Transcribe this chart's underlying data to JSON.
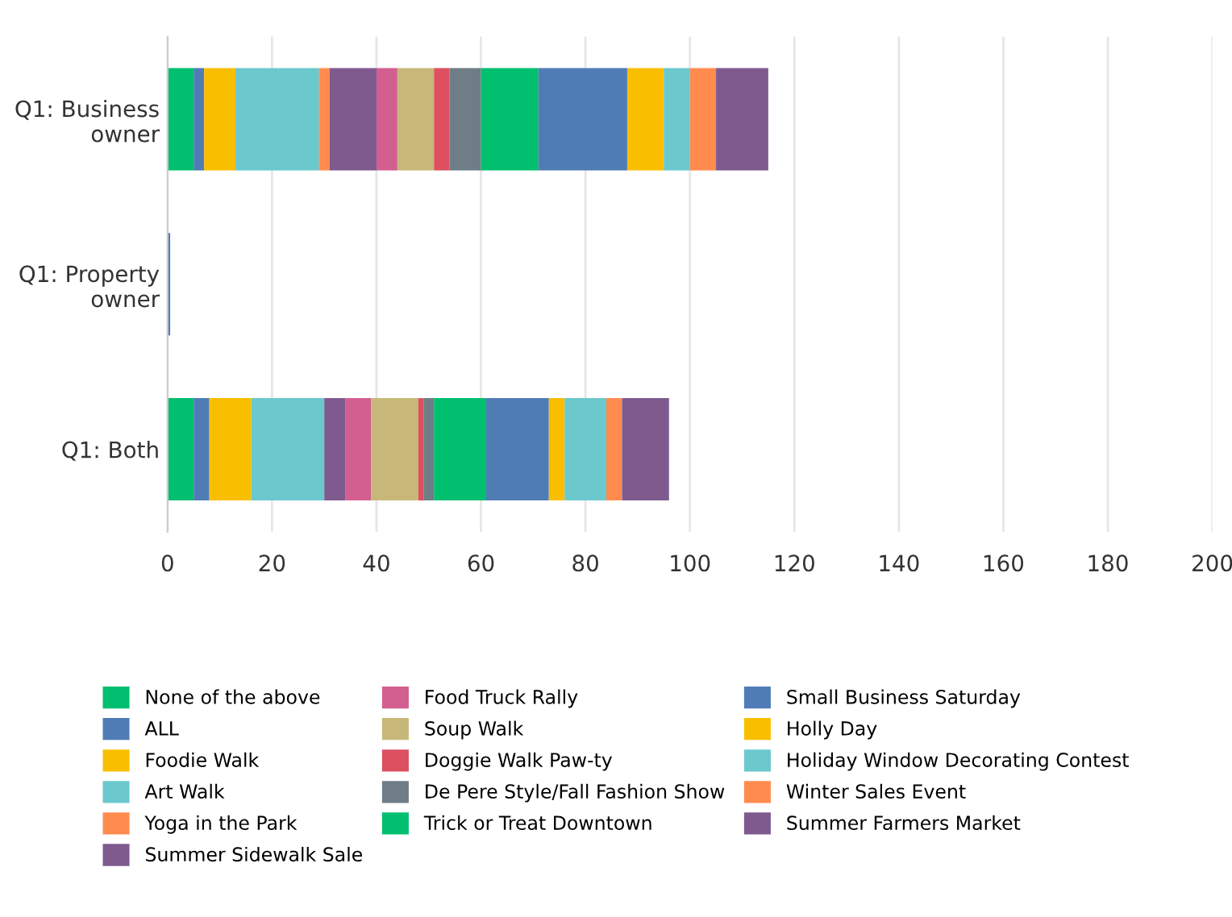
{
  "chart_data": {
    "type": "bar",
    "orientation": "horizontal",
    "stacked": true,
    "categories": [
      "Q1: Business\nowner",
      "Q1: Property\nowner",
      "Q1: Both"
    ],
    "xlim": [
      0,
      200
    ],
    "xticks": [
      0,
      20,
      40,
      60,
      80,
      100,
      120,
      140,
      160,
      180,
      200
    ],
    "grid": "x",
    "legend": "bottom",
    "series": [
      {
        "name": "None of the above",
        "color": "#00bf6f",
        "values": [
          5,
          0,
          5
        ]
      },
      {
        "name": "ALL",
        "color": "#507cb6",
        "values": [
          2,
          0.5,
          3
        ]
      },
      {
        "name": "Foodie Walk",
        "color": "#f9be00",
        "values": [
          6,
          0,
          8
        ]
      },
      {
        "name": "Art Walk",
        "color": "#6bc8cd",
        "values": [
          16,
          0,
          14
        ]
      },
      {
        "name": "Yoga in the Park",
        "color": "#ff8b4f",
        "values": [
          2,
          0,
          0
        ]
      },
      {
        "name": "Summer Sidewalk Sale",
        "color": "#7f5a8f",
        "values": [
          9,
          0,
          4
        ]
      },
      {
        "name": "Food Truck Rally",
        "color": "#d25f90",
        "values": [
          4,
          0,
          5
        ]
      },
      {
        "name": "Soup Walk",
        "color": "#c7b879",
        "values": [
          7,
          0,
          9
        ]
      },
      {
        "name": "Doggie Walk Paw-ty",
        "color": "#dc5060",
        "values": [
          3,
          0,
          1
        ]
      },
      {
        "name": "De Pere Style/Fall Fashion Show",
        "color": "#6f7d87",
        "values": [
          6,
          0,
          2
        ]
      },
      {
        "name": "Trick or Treat Downtown",
        "color": "#00bf6f",
        "values": [
          11,
          0,
          10
        ]
      },
      {
        "name": "Small Business Saturday",
        "color": "#507cb6",
        "values": [
          17,
          0,
          12
        ]
      },
      {
        "name": "Holly Day",
        "color": "#f9be00",
        "values": [
          7,
          0,
          3
        ]
      },
      {
        "name": "Holiday Window Decorating Contest",
        "color": "#6bc8cd",
        "values": [
          5,
          0,
          8
        ]
      },
      {
        "name": "Winter Sales Event",
        "color": "#ff8b4f",
        "values": [
          5,
          0,
          3
        ]
      },
      {
        "name": "Summer Farmers Market",
        "color": "#7f5a8f",
        "values": [
          10,
          0,
          9
        ]
      }
    ]
  }
}
